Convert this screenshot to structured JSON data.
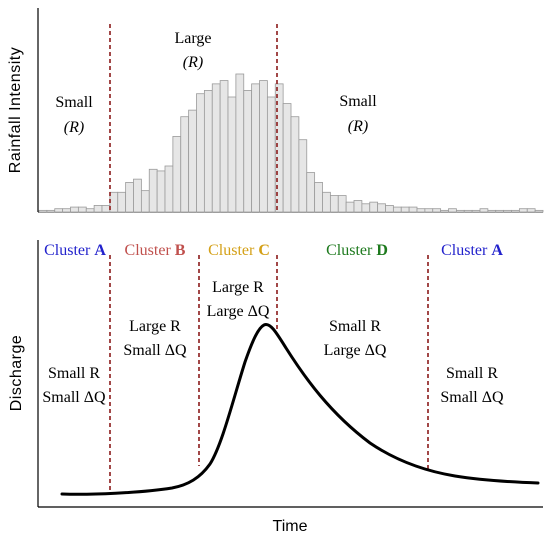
{
  "rainfall_panel": {
    "ylabel": "Rainfall Intensity",
    "regions": [
      {
        "line1": "Small",
        "line2": "(R)"
      },
      {
        "line1": "Large",
        "line2": "(R)"
      },
      {
        "line1": "Small",
        "line2": "(R)"
      }
    ],
    "bar_values": [
      1,
      1,
      2,
      2,
      3,
      3,
      2,
      4,
      4,
      12,
      12,
      18,
      20,
      13,
      26,
      25,
      28,
      46,
      58,
      62,
      72,
      74,
      78,
      80,
      70,
      84,
      74,
      78,
      80,
      70,
      78,
      66,
      58,
      44,
      24,
      18,
      12,
      10,
      10,
      6,
      7,
      5,
      6,
      5,
      4,
      3,
      3,
      3,
      2,
      2,
      2,
      1,
      2,
      1,
      1,
      1,
      2,
      1,
      1,
      1,
      1,
      2,
      2,
      1
    ]
  },
  "discharge_panel": {
    "ylabel": "Discharge",
    "xlabel": "Time",
    "clusters": [
      {
        "prefix": "Cluster ",
        "letter": "A",
        "color": "#2222cc"
      },
      {
        "prefix": "Cluster ",
        "letter": "B",
        "color": "#c0504d"
      },
      {
        "prefix": "Cluster ",
        "letter": "C",
        "color": "#d4a017"
      },
      {
        "prefix": "Cluster ",
        "letter": "D",
        "color": "#1e7a1e"
      },
      {
        "prefix": "Cluster ",
        "letter": "A",
        "color": "#2222cc"
      }
    ],
    "annotations": [
      {
        "line1": "Small R",
        "line2": "Small ΔQ"
      },
      {
        "line1": "Large R",
        "line2": "Small ΔQ"
      },
      {
        "line1": "Large R",
        "line2": "Large ΔQ"
      },
      {
        "line1": "Small R",
        "line2": "Large ΔQ"
      },
      {
        "line1": "Small R",
        "line2": "Small ΔQ"
      }
    ]
  },
  "colors": {
    "divider": "#8b1a1a",
    "bar_fill": "#e6e6e6",
    "bar_stroke": "#9a9a9a",
    "curve": "#000000"
  }
}
